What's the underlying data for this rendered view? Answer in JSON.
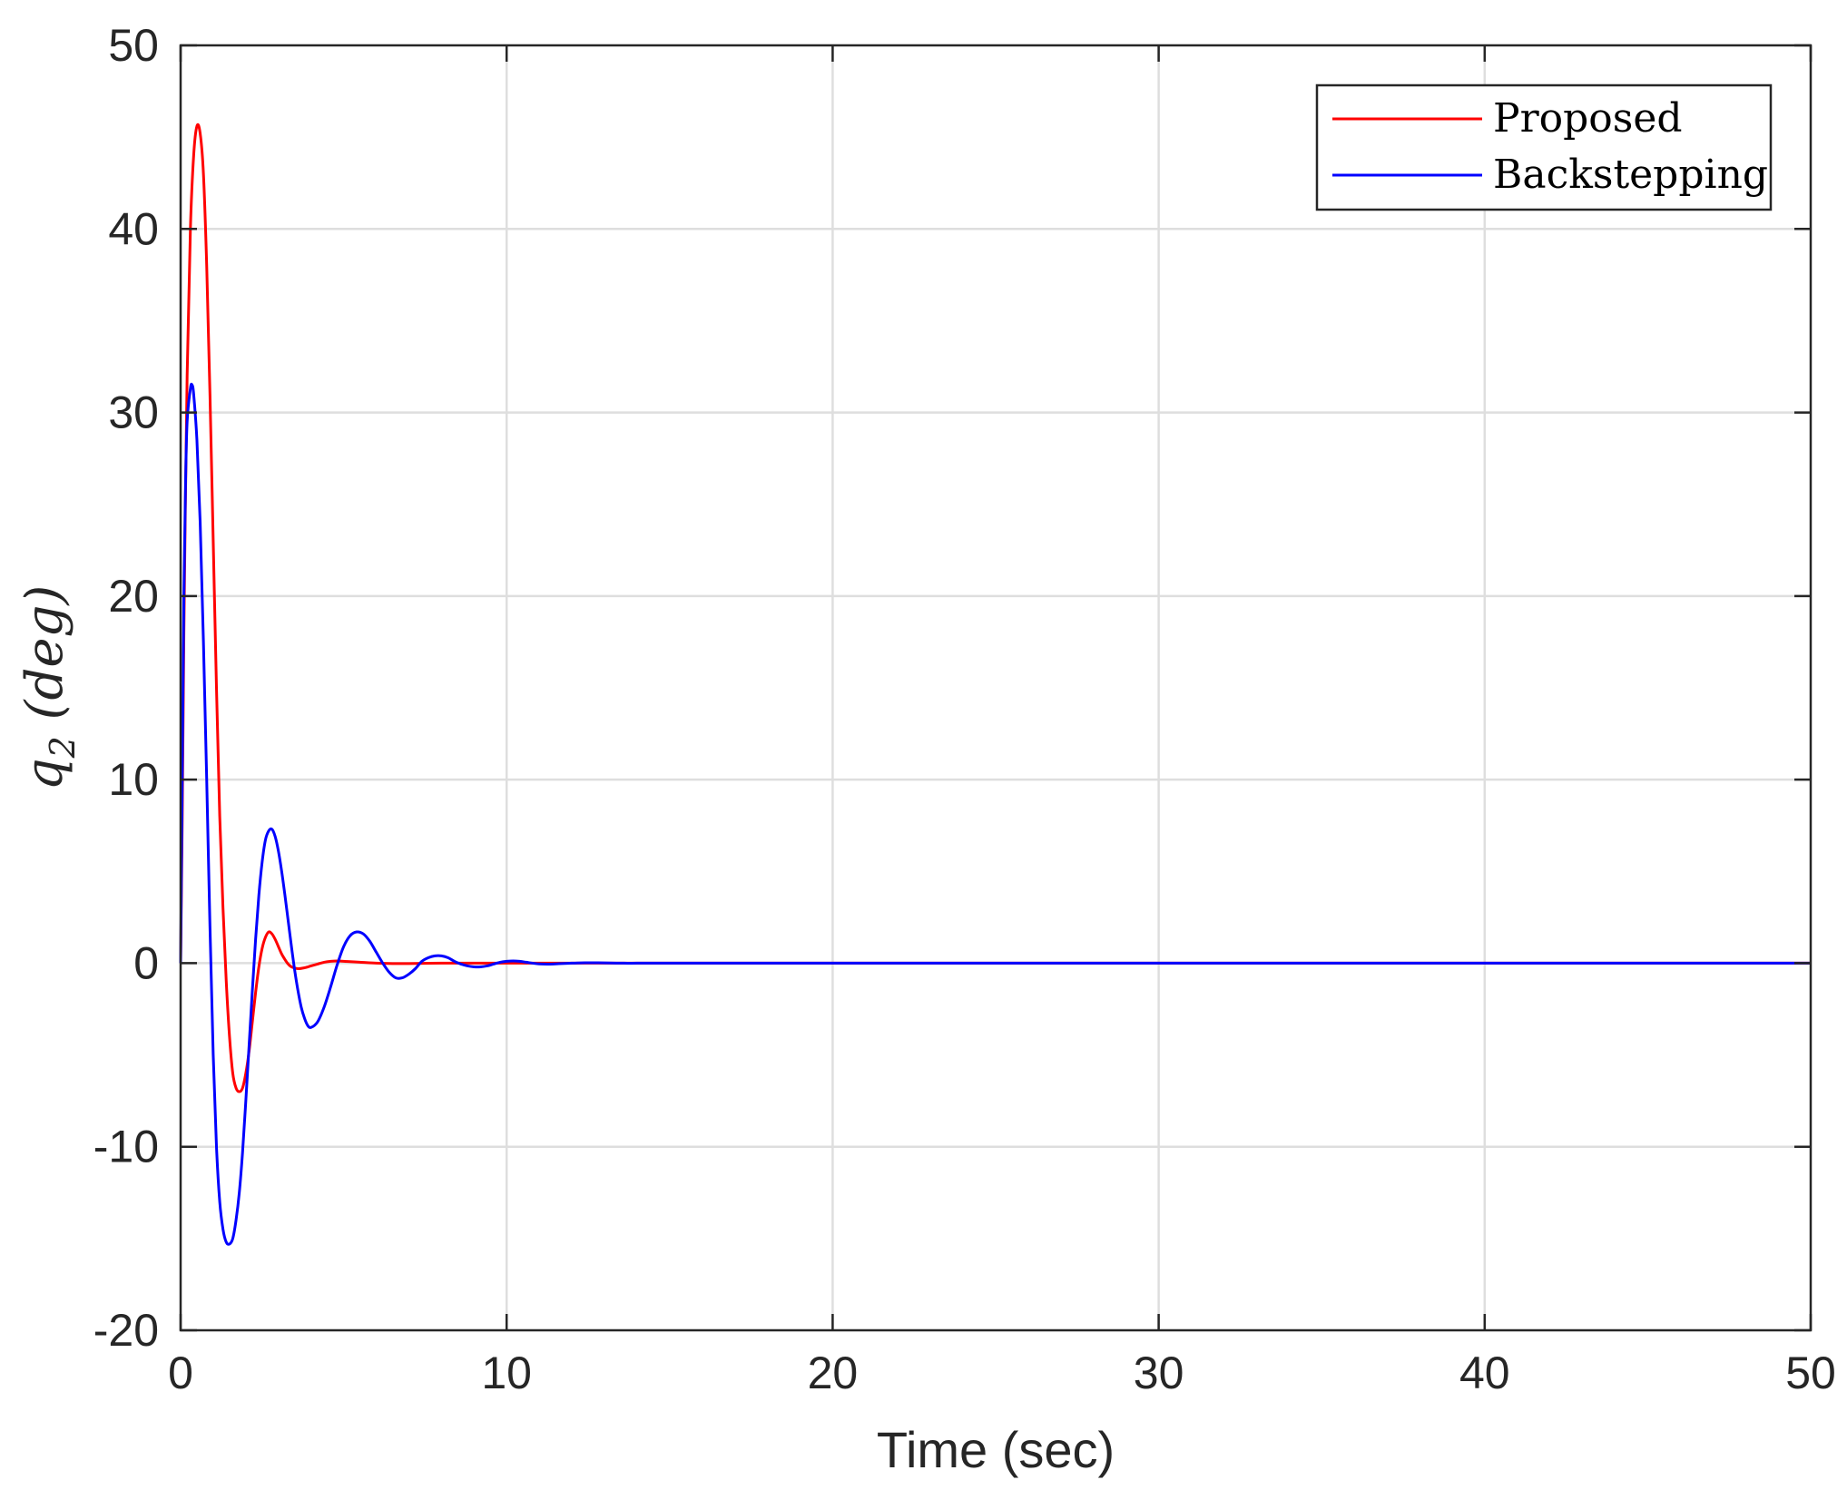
{
  "chart_data": {
    "type": "line",
    "title": "",
    "xlabel": "Time (sec)",
    "ylabel": {
      "symbol": "q",
      "subscript": "2",
      "unit": "(deg)"
    },
    "xlim": [
      0,
      50
    ],
    "ylim": [
      -20,
      50
    ],
    "xticks": [
      0,
      10,
      20,
      30,
      40,
      50
    ],
    "yticks": [
      -20,
      -10,
      0,
      10,
      20,
      30,
      40,
      50
    ],
    "xtick_labels": [
      "0",
      "10",
      "20",
      "30",
      "40",
      "50"
    ],
    "ytick_labels": [
      "-20",
      "-10",
      "0",
      "10",
      "20",
      "30",
      "40",
      "50"
    ],
    "grid": true,
    "legend_position": "top-right",
    "series": [
      {
        "name": "Proposed",
        "color": "#ff0000",
        "x": [
          0,
          0.05,
          0.1,
          0.2,
          0.3,
          0.4,
          0.5,
          0.6,
          0.7,
          0.8,
          0.9,
          1.0,
          1.1,
          1.2,
          1.3,
          1.4,
          1.5,
          1.6,
          1.7,
          1.8,
          1.9,
          2.0,
          2.1,
          2.2,
          2.3,
          2.4,
          2.5,
          2.6,
          2.7,
          2.8,
          2.9,
          3.0,
          3.1,
          3.2,
          3.3,
          3.4,
          3.6,
          3.8,
          4.0,
          4.2,
          4.4,
          4.6,
          4.8,
          5.0,
          5.5,
          6.0,
          6.5,
          7.0,
          8.0,
          9.0,
          10.0,
          12.0,
          14.0,
          16.0,
          18.0,
          20.0,
          25.0,
          30.0,
          35.0,
          40.0,
          45.0,
          50.0
        ],
        "y": [
          0,
          8,
          18,
          32,
          40,
          44,
          45.6,
          45.2,
          43,
          38,
          31,
          23,
          15,
          8,
          3,
          -1,
          -4,
          -6,
          -6.8,
          -7,
          -6.8,
          -6,
          -4.8,
          -3.2,
          -1.6,
          -0.2,
          0.8,
          1.4,
          1.7,
          1.6,
          1.3,
          0.9,
          0.5,
          0.2,
          -0.05,
          -0.2,
          -0.3,
          -0.25,
          -0.15,
          -0.05,
          0.05,
          0.1,
          0.12,
          0.1,
          0.05,
          0,
          -0.02,
          -0.02,
          0,
          0,
          0,
          0,
          0,
          0,
          0,
          0,
          0,
          0,
          0,
          0,
          0,
          0
        ]
      },
      {
        "name": "Backstepping",
        "color": "#0000ff",
        "x": [
          0,
          0.05,
          0.1,
          0.15,
          0.2,
          0.3,
          0.35,
          0.4,
          0.5,
          0.6,
          0.7,
          0.8,
          0.9,
          1.0,
          1.1,
          1.2,
          1.3,
          1.4,
          1.5,
          1.6,
          1.7,
          1.8,
          1.9,
          2.0,
          2.1,
          2.2,
          2.3,
          2.4,
          2.5,
          2.6,
          2.7,
          2.8,
          2.9,
          3.0,
          3.1,
          3.2,
          3.3,
          3.4,
          3.5,
          3.6,
          3.7,
          3.8,
          3.9,
          4.0,
          4.2,
          4.4,
          4.6,
          4.8,
          5.0,
          5.2,
          5.4,
          5.6,
          5.8,
          6.0,
          6.2,
          6.4,
          6.6,
          6.8,
          7.0,
          7.2,
          7.4,
          7.6,
          7.8,
          8.0,
          8.2,
          8.4,
          8.6,
          8.8,
          9.0,
          9.2,
          9.4,
          9.6,
          9.8,
          10.0,
          10.2,
          10.4,
          10.6,
          10.8,
          11.0,
          11.3,
          11.6,
          12.0,
          12.4,
          12.8,
          13.2,
          13.6,
          14.0,
          14.4,
          14.8,
          15.2,
          15.6,
          16.0,
          17.0,
          18.0,
          19.0,
          20.0,
          25.0,
          30.0,
          35.0,
          40.0,
          45.0,
          50.0
        ],
        "y": [
          0,
          10,
          20,
          26,
          29.5,
          31.3,
          31.5,
          31,
          28.5,
          24,
          17.5,
          10,
          2,
          -5,
          -10,
          -13,
          -14.5,
          -15.2,
          -15.3,
          -15,
          -14,
          -12.5,
          -10.3,
          -7.5,
          -4.5,
          -1.5,
          1.3,
          3.7,
          5.5,
          6.7,
          7.2,
          7.3,
          6.9,
          6.1,
          5,
          3.7,
          2.3,
          0.9,
          -0.4,
          -1.5,
          -2.4,
          -3,
          -3.4,
          -3.5,
          -3.2,
          -2.4,
          -1.3,
          -0.1,
          0.9,
          1.5,
          1.7,
          1.6,
          1.2,
          0.6,
          0,
          -0.5,
          -0.8,
          -0.8,
          -0.6,
          -0.3,
          0.1,
          0.3,
          0.4,
          0.4,
          0.3,
          0.1,
          -0.05,
          -0.15,
          -0.2,
          -0.2,
          -0.15,
          -0.05,
          0.05,
          0.1,
          0.12,
          0.1,
          0.05,
          0,
          -0.04,
          -0.05,
          -0.03,
          0,
          0.02,
          0.02,
          0.01,
          0,
          0,
          0,
          0,
          0,
          0,
          0,
          0,
          0,
          0,
          0,
          0,
          0,
          0,
          0,
          0,
          0
        ]
      }
    ]
  }
}
